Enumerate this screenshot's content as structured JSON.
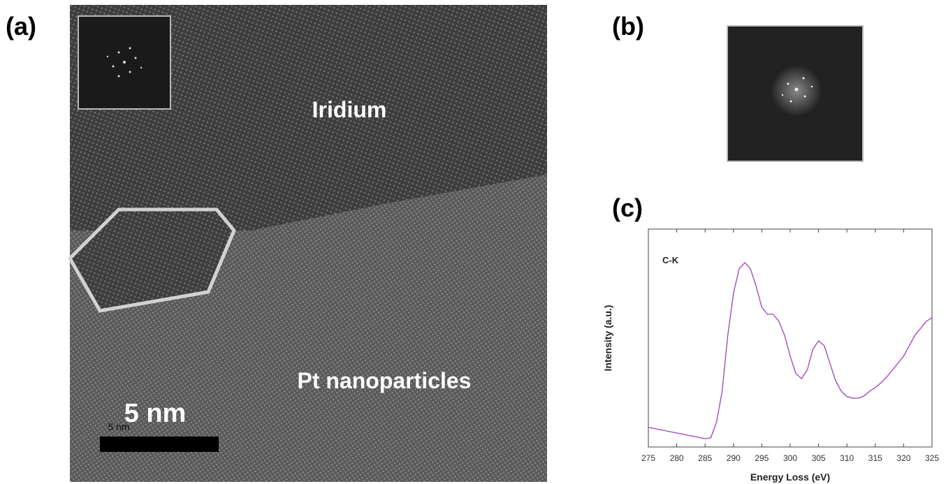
{
  "panels": {
    "a": {
      "label": "(a)",
      "region_top": "Iridium",
      "region_bottom": "Pt nanoparticles",
      "scale_bar": "5 nm",
      "scale_bar_small": "5 nm"
    },
    "b": {
      "label": "(b)"
    },
    "c": {
      "label": "(c)"
    }
  },
  "chart_data": {
    "type": "line",
    "annotation": "C-K",
    "x_label": "Energy Loss (eV)",
    "y_label": "Intensity (a.u.)",
    "xlim": [
      275,
      325
    ],
    "xticks": [
      275,
      280,
      285,
      290,
      295,
      300,
      305,
      310,
      315,
      320,
      325
    ],
    "ylim": [
      0,
      100
    ],
    "x": [
      275,
      280,
      285,
      286,
      287,
      288,
      289,
      290,
      291,
      292,
      293,
      294,
      295,
      296,
      297,
      298,
      299,
      300,
      301,
      302,
      303,
      304,
      305,
      306,
      307,
      308,
      309,
      310,
      311,
      312,
      313,
      314,
      315,
      316,
      317,
      318,
      319,
      320,
      321,
      322,
      323,
      324,
      325
    ],
    "series": [
      {
        "name": "C-K",
        "color": "#a040b8",
        "values": [
          9.0,
          6.4,
          3.8,
          4.2,
          11.2,
          25.6,
          51.3,
          70.5,
          81.7,
          84.6,
          81.7,
          73.7,
          64.1,
          60.9,
          60.9,
          57.7,
          51.3,
          41.7,
          33.7,
          31.4,
          35.3,
          44.9,
          48.7,
          46.5,
          38.5,
          30.4,
          25.6,
          23.1,
          22.4,
          22.4,
          23.4,
          25.6,
          27.2,
          29.5,
          32.1,
          35.3,
          38.5,
          41.7,
          46.5,
          51.3,
          54.5,
          57.7,
          59.3
        ]
      }
    ]
  }
}
